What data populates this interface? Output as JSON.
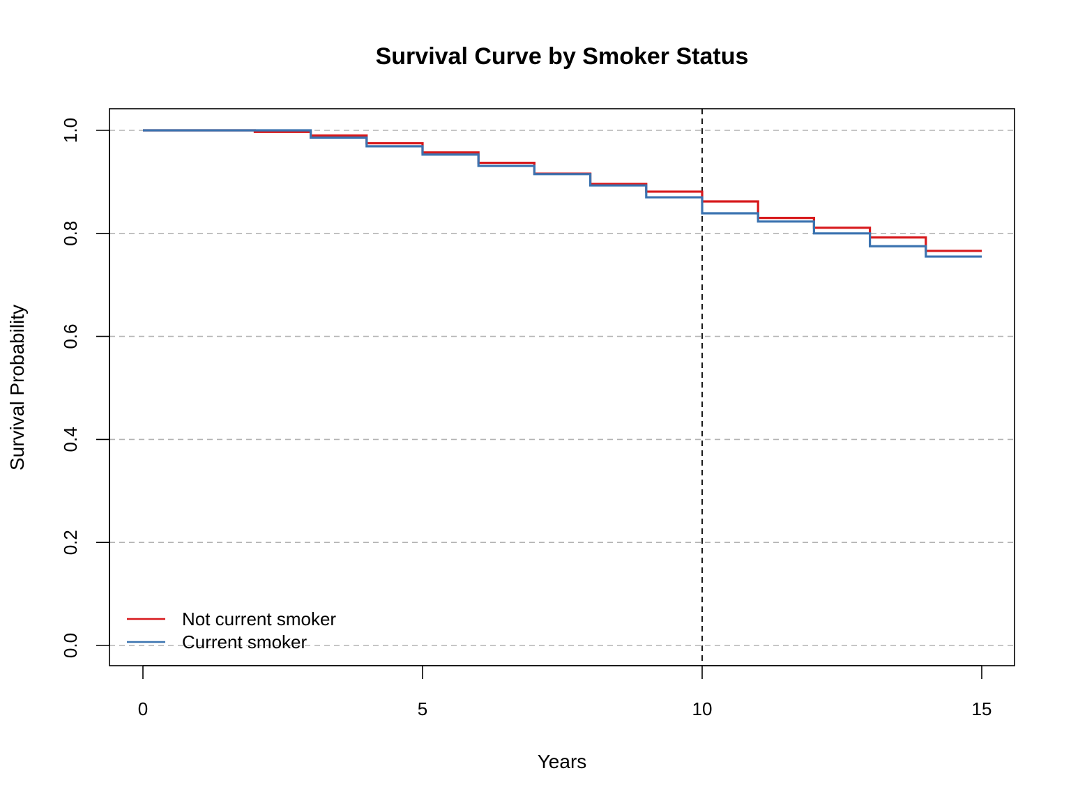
{
  "chart_data": {
    "type": "line",
    "step": true,
    "title": "Survival Curve by Smoker Status",
    "xlabel": "Years",
    "ylabel": "Survival Probability",
    "xlim": [
      0,
      15
    ],
    "ylim": [
      0,
      1
    ],
    "x_ticks": [
      0,
      5,
      10,
      15
    ],
    "y_ticks": [
      0.0,
      0.2,
      0.4,
      0.6,
      0.8,
      1.0
    ],
    "x_tick_labels": [
      "0",
      "5",
      "10",
      "15"
    ],
    "y_tick_labels": [
      "0.0",
      "0.2",
      "0.4",
      "0.6",
      "0.8",
      "1.0"
    ],
    "grid": "horizontal dashed",
    "vline": 10,
    "legend_position": "bottom-left",
    "series": [
      {
        "name": "Not current smoker",
        "color": "#d7191c",
        "x": [
          0,
          1,
          2,
          3,
          4,
          5,
          6,
          7,
          8,
          9,
          10,
          11,
          12,
          13,
          14,
          15
        ],
        "y": [
          1.0,
          1.0,
          0.997,
          0.99,
          0.975,
          0.957,
          0.937,
          0.916,
          0.896,
          0.881,
          0.862,
          0.83,
          0.811,
          0.792,
          0.766,
          0.766
        ]
      },
      {
        "name": "Current smoker",
        "color": "#3b73b0",
        "x": [
          0,
          1,
          2,
          3,
          4,
          5,
          6,
          7,
          8,
          9,
          10,
          11,
          12,
          13,
          14,
          15
        ],
        "y": [
          1.0,
          1.0,
          1.0,
          0.986,
          0.969,
          0.953,
          0.931,
          0.915,
          0.893,
          0.87,
          0.839,
          0.823,
          0.8,
          0.775,
          0.755,
          0.755
        ]
      }
    ]
  }
}
